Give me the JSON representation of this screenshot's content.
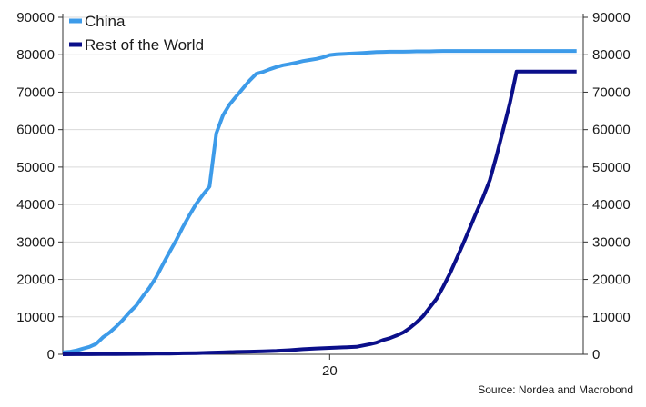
{
  "chart_data": {
    "type": "line",
    "x_tick_labels": [
      {
        "label": "20",
        "x": 40
      }
    ],
    "y_ticks": [
      0,
      10000,
      20000,
      30000,
      40000,
      50000,
      60000,
      70000,
      80000,
      90000
    ],
    "y_tick_labels": [
      "0",
      "10000",
      "20000",
      "30000",
      "40000",
      "50000",
      "60000",
      "70000",
      "80000",
      "90000"
    ],
    "ylim": [
      0,
      90000
    ],
    "xlim": [
      0,
      78
    ],
    "grid": true,
    "legend_position": "top-left",
    "series": [
      {
        "name": "China",
        "color": "#3d9be9",
        "x": [
          0,
          1,
          2,
          3,
          4,
          5,
          6,
          7,
          8,
          9,
          10,
          11,
          12,
          13,
          14,
          15,
          16,
          17,
          18,
          19,
          20,
          21,
          22,
          23,
          24,
          25,
          26,
          27,
          28,
          29,
          30,
          31,
          32,
          33,
          34,
          35,
          36,
          37,
          38,
          39,
          40,
          41,
          42,
          43,
          44,
          45,
          46,
          47,
          48,
          49,
          50,
          51,
          52,
          53,
          54,
          55,
          56,
          57,
          58,
          59,
          60,
          61,
          62,
          63,
          64,
          65,
          66,
          67,
          68,
          69,
          70,
          71,
          72,
          73,
          74,
          75,
          76,
          77
        ],
        "values": [
          550,
          650,
          1000,
          1500,
          2000,
          2800,
          4500,
          5800,
          7400,
          9200,
          11200,
          13000,
          15500,
          17800,
          20600,
          24000,
          27300,
          30500,
          34000,
          37200,
          40200,
          42600,
          44800,
          59000,
          63800,
          66700,
          68900,
          71000,
          73100,
          74900,
          75400,
          76100,
          76700,
          77200,
          77500,
          77900,
          78300,
          78600,
          78900,
          79300,
          79900,
          80100,
          80200,
          80300,
          80400,
          80500,
          80600,
          80700,
          80750,
          80800,
          80800,
          80800,
          80850,
          80900,
          80900,
          80900,
          80950,
          81000,
          81000,
          81000,
          81000,
          81000,
          81000,
          81000,
          81000,
          81000,
          81000,
          81000,
          81000,
          81000,
          81000,
          81000,
          81000,
          81000,
          81000,
          81000,
          81000,
          81000
        ]
      },
      {
        "name": "Rest of the World",
        "color": "#0b0f8a",
        "x": [
          0,
          2,
          4,
          6,
          8,
          10,
          12,
          14,
          16,
          18,
          20,
          22,
          24,
          26,
          28,
          30,
          32,
          34,
          36,
          38,
          40,
          42,
          44,
          46,
          47,
          48,
          49,
          50,
          51,
          52,
          53,
          54,
          55,
          56,
          57,
          58,
          59,
          60,
          61,
          62,
          63,
          64,
          65,
          66,
          67,
          68,
          69,
          70,
          71,
          72,
          73,
          74,
          75,
          76,
          77
        ],
        "values": [
          0,
          20,
          30,
          50,
          80,
          100,
          130,
          160,
          200,
          260,
          320,
          420,
          520,
          620,
          700,
          800,
          900,
          1100,
          1350,
          1550,
          1700,
          1850,
          2000,
          2700,
          3100,
          3800,
          4300,
          5000,
          5800,
          7000,
          8500,
          10200,
          12500,
          14800,
          18000,
          21500,
          25500,
          29500,
          33700,
          38000,
          42000,
          46500,
          53000,
          60000,
          67000,
          75500,
          75500,
          75500,
          75500,
          75500,
          75500,
          75500,
          75500,
          75500,
          75500
        ]
      }
    ],
    "source": "Source: Nordea and Macrobond"
  }
}
